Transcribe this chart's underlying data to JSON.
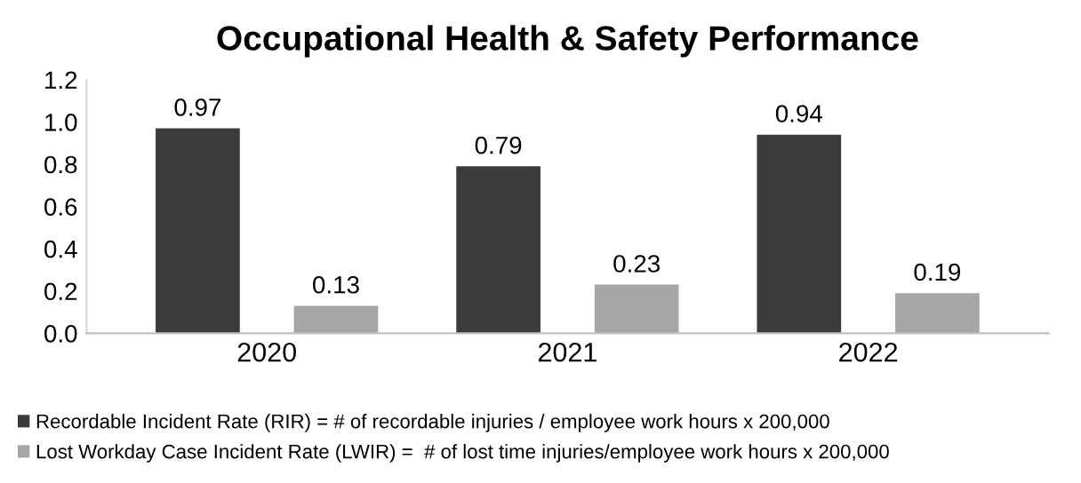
{
  "chart_data": {
    "type": "bar",
    "title": "Occupational Health & Safety Performance",
    "categories": [
      "2020",
      "2021",
      "2022"
    ],
    "series": [
      {
        "name": "Recordable Incident Rate (RIR) = # of recordable injuries / employee work hours x 200,000",
        "color": "#3b3b3b",
        "values": [
          0.97,
          0.79,
          0.94
        ]
      },
      {
        "name": "Lost Workday Case Incident Rate (LWIR) =  # of lost time injuries/employee work hours x 200,000",
        "color": "#a6a6a6",
        "values": [
          0.13,
          0.23,
          0.19
        ]
      }
    ],
    "ylim": [
      0,
      1.2
    ],
    "yticks": [
      {
        "value": 0,
        "label": "0.0"
      },
      0.2,
      0.4,
      0.6,
      0.8,
      {
        "value": 1,
        "label": "1.0"
      },
      1.2
    ],
    "data_labels": true,
    "grid": false,
    "legend": "bottom"
  }
}
